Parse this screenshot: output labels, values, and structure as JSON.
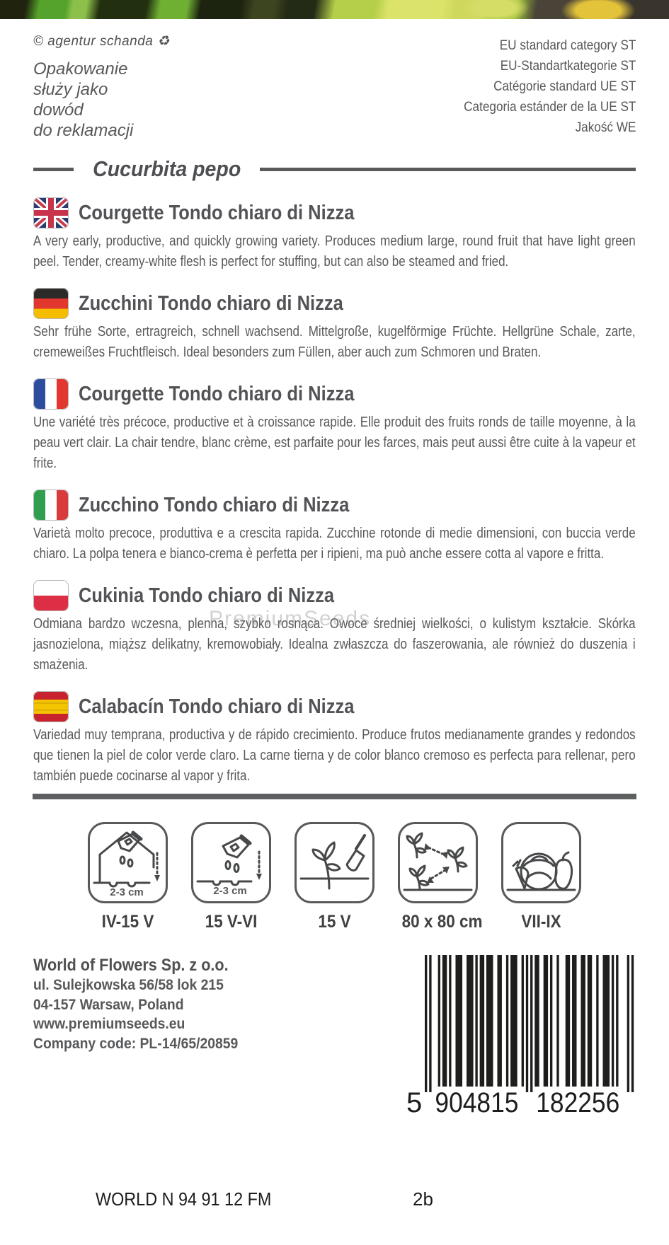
{
  "header": {
    "copyright": "© agentur schanda",
    "recycle_icon": "♻",
    "claim_lines": [
      "Opakowanie",
      "służy jako",
      "dowód",
      "do reklamacji"
    ],
    "eu_lines": [
      "EU standard category ST",
      "EU-Standartkategorie ST",
      "Catégorie standard UE ST",
      "Categoria estánder de la UE ST",
      "Jakość WE"
    ]
  },
  "species": "Cucurbita pepo",
  "watermark": "PremiumSeeds",
  "sections": [
    {
      "lang": "en",
      "flag": "united-kingdom",
      "title": "Courgette Tondo chiaro di Nizza",
      "body": "A very early, productive, and quickly growing variety. Produces medium large, round fruit that have light green peel. Tender, creamy-white flesh is perfect for stuffing, but can also be steamed and fried."
    },
    {
      "lang": "de",
      "flag": "germany",
      "title": "Zucchini Tondo chiaro di Nizza",
      "body": "Sehr frühe Sorte, ertragreich, schnell wachsend. Mittelgroße, kugelförmige Früchte. Hellgrüne Schale, zarte, cremeweißes Fruchtfleisch. Ideal besonders zum Füllen, aber auch zum Schmoren und Braten."
    },
    {
      "lang": "fr",
      "flag": "france",
      "title": "Courgette Tondo chiaro di Nizza",
      "body": "Une variété très précoce, productive et à croissance rapide. Elle produit des fruits ronds de taille moyenne, à la peau vert clair. La chair tendre, blanc crème, est parfaite pour les farces, mais peut aussi être cuite à la vapeur et frite."
    },
    {
      "lang": "it",
      "flag": "italy",
      "title": "Zucchino Tondo chiaro di Nizza",
      "body": "Varietà molto precoce, produttiva e a crescita rapida. Zucchine rotonde di medie dimensioni, con buccia verde chiaro. La polpa tenera e bianco-crema è perfetta per i ripieni, ma può anche essere cotta al vapore e fritta."
    },
    {
      "lang": "pl",
      "flag": "poland",
      "title": "Cukinia Tondo chiaro di Nizza",
      "body": "Odmiana bardzo wczesna, plenna, szybko rosnąca. Owoce średniej wielkości, o kulistym kształcie. Skórka jasnozielona, miąższ delikatny, kremowobiały. Idealna zwłaszcza do faszerowania, ale również do duszenia i smażenia."
    },
    {
      "lang": "es",
      "flag": "spain",
      "title": "Calabacín Tondo chiaro di Nizza",
      "body": "Variedad muy temprana, productiva y de rápido crecimiento. Produce frutos medianamente grandes y redondos que tienen la piel de color verde claro. La carne tierna y de color blanco cremoso es perfecta para rellenar, pero también puede cocinarse al vapor y frita."
    }
  ],
  "icons": [
    {
      "name": "sow-indoors-icon",
      "depth_label": "2-3 cm",
      "caption": "IV-15 V"
    },
    {
      "name": "sow-outdoors-icon",
      "depth_label": "2-3 cm",
      "caption": "15 V-VI"
    },
    {
      "name": "plant-out-icon",
      "depth_label": "",
      "caption": "15 V"
    },
    {
      "name": "plant-spacing-icon",
      "depth_label": "",
      "caption": "80 x 80 cm"
    },
    {
      "name": "harvest-icon",
      "depth_label": "",
      "caption": "VII-IX"
    }
  ],
  "company": {
    "name": "World of Flowers Sp. z o.o.",
    "address1": "ul. Sulejkowska 56/58 lok 215",
    "address2": "04-157 Warsaw, Poland",
    "website": "www.premiumseeds.eu",
    "company_code": "Company code: PL-14/65/20859"
  },
  "barcode": {
    "display": "5 904815 182256",
    "digits": "5904815182256"
  },
  "footer": {
    "batch": "WORLD N 94 91 12  FM",
    "code": "2b"
  },
  "colors": {
    "text_gray": "#58595b",
    "title_gray": "#525356",
    "divider_gray": "#5e5f61",
    "footer_black": "#1d1d1b"
  }
}
